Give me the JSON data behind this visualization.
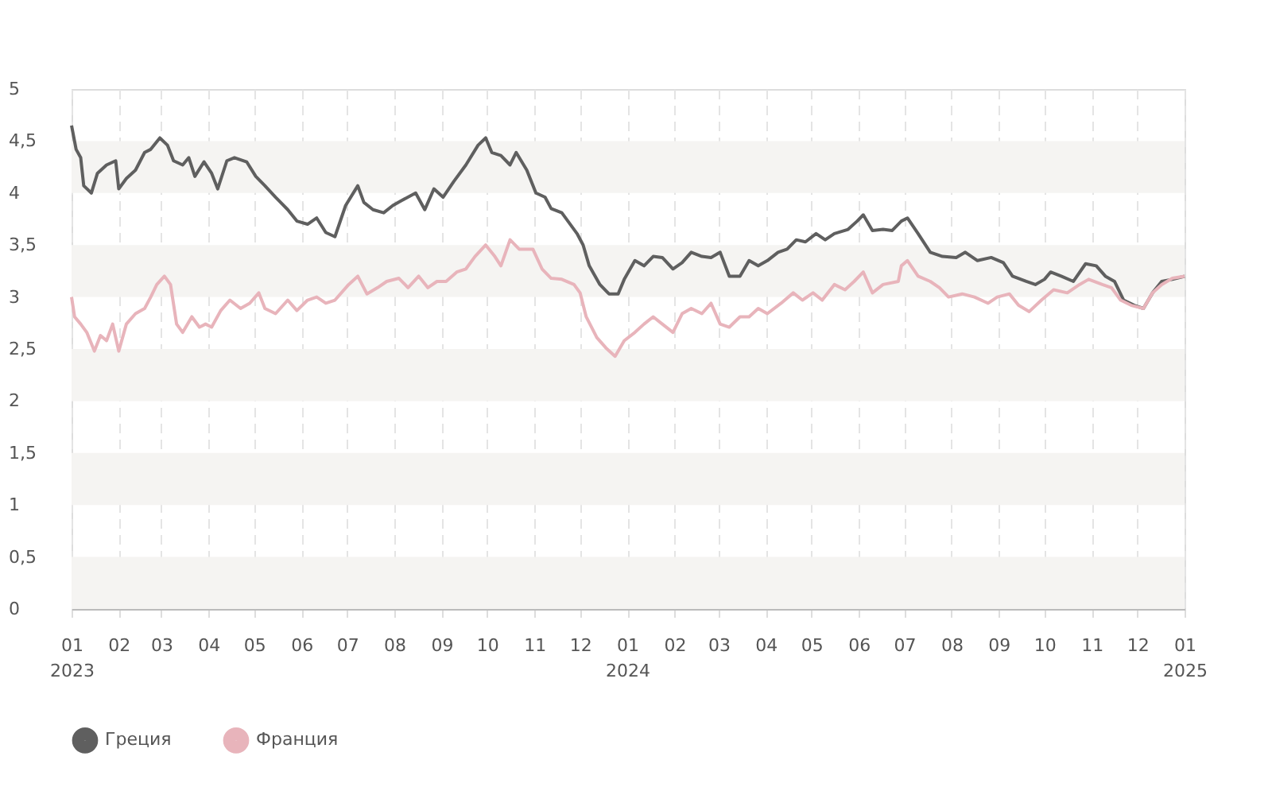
{
  "chart_data": {
    "type": "line",
    "xlim": [
      "2023-01-01",
      "2025-01-01"
    ],
    "xticks": [
      {
        "value": "2023-01-01",
        "label": "01\n2023"
      },
      {
        "value": "2023-02-01",
        "label": "02"
      },
      {
        "value": "2023-03-01",
        "label": "03"
      },
      {
        "value": "2023-04-01",
        "label": "04"
      },
      {
        "value": "2023-05-01",
        "label": "05"
      },
      {
        "value": "2023-06-01",
        "label": "06"
      },
      {
        "value": "2023-07-01",
        "label": "07"
      },
      {
        "value": "2023-08-01",
        "label": "08"
      },
      {
        "value": "2023-09-01",
        "label": "09"
      },
      {
        "value": "2023-10-01",
        "label": "10"
      },
      {
        "value": "2023-11-01",
        "label": "11"
      },
      {
        "value": "2023-12-01",
        "label": "12"
      },
      {
        "value": "2024-01-01",
        "label": "01\n2024"
      },
      {
        "value": "2024-02-01",
        "label": "02"
      },
      {
        "value": "2024-03-01",
        "label": "03"
      },
      {
        "value": "2024-04-01",
        "label": "04"
      },
      {
        "value": "2024-05-01",
        "label": "05"
      },
      {
        "value": "2024-06-01",
        "label": "06"
      },
      {
        "value": "2024-07-01",
        "label": "07"
      },
      {
        "value": "2024-08-01",
        "label": "08"
      },
      {
        "value": "2024-09-01",
        "label": "09"
      },
      {
        "value": "2024-10-01",
        "label": "10"
      },
      {
        "value": "2024-11-01",
        "label": "11"
      },
      {
        "value": "2024-12-01",
        "label": "12"
      },
      {
        "value": "2025-01-01",
        "label": "01\n2025"
      }
    ],
    "ylim": [
      0,
      5
    ],
    "yticks": [
      0,
      {
        "value": 0.5,
        "label": "0,5"
      },
      1,
      {
        "value": 1.5,
        "label": "1,5"
      },
      2,
      {
        "value": 2.5,
        "label": "2,5"
      },
      3,
      {
        "value": 3.5,
        "label": "3,5"
      },
      4,
      {
        "value": 4.5,
        "label": "4,5"
      },
      5
    ],
    "grid": "x",
    "legend": "bottom",
    "marker": "none",
    "line_style": "solid",
    "bands": [
      {
        "axis": "y",
        "from": 0,
        "to": 0.5,
        "color": "#f5f4f2"
      },
      {
        "axis": "y",
        "from": 1,
        "to": 1.5,
        "color": "#f5f4f2"
      },
      {
        "axis": "y",
        "from": 2,
        "to": 2.5,
        "color": "#f5f4f2"
      },
      {
        "axis": "y",
        "from": 3,
        "to": 3.5,
        "color": "#f5f4f2"
      },
      {
        "axis": "y",
        "from": 4,
        "to": 4.5,
        "color": "#f5f4f2"
      }
    ],
    "series": [
      {
        "name": "Греция",
        "color": "#5f5f5f",
        "x": [
          "2023-01-01",
          "2023-01-04",
          "2023-01-07",
          "2023-01-09",
          "2023-01-14",
          "2023-01-18",
          "2023-01-24",
          "2023-01-30",
          "2023-02-01",
          "2023-02-06",
          "2023-02-12",
          "2023-02-18",
          "2023-02-22",
          "2023-02-28",
          "2023-03-05",
          "2023-03-09",
          "2023-03-15",
          "2023-03-19",
          "2023-03-23",
          "2023-03-29",
          "2023-04-03",
          "2023-04-07",
          "2023-04-13",
          "2023-04-18",
          "2023-04-26",
          "2023-05-02",
          "2023-05-08",
          "2023-05-15",
          "2023-05-23",
          "2023-05-29",
          "2023-06-05",
          "2023-06-11",
          "2023-06-17",
          "2023-06-23",
          "2023-06-30",
          "2023-07-08",
          "2023-07-12",
          "2023-07-18",
          "2023-07-25",
          "2023-07-31",
          "2023-08-06",
          "2023-08-15",
          "2023-08-21",
          "2023-08-27",
          "2023-09-02",
          "2023-09-09",
          "2023-09-17",
          "2023-09-25",
          "2023-09-30",
          "2023-10-04",
          "2023-10-10",
          "2023-10-16",
          "2023-10-20",
          "2023-10-27",
          "2023-11-02",
          "2023-11-08",
          "2023-11-12",
          "2023-11-19",
          "2023-11-23",
          "2023-11-29",
          "2023-12-03",
          "2023-12-07",
          "2023-12-14",
          "2023-12-20",
          "2023-12-26",
          "2023-12-30",
          "2024-01-06",
          "2024-01-12",
          "2024-01-18",
          "2024-01-24",
          "2024-01-31",
          "2024-02-06",
          "2024-02-12",
          "2024-02-19",
          "2024-02-25",
          "2024-03-02",
          "2024-03-08",
          "2024-03-15",
          "2024-03-21",
          "2024-03-27",
          "2024-04-02",
          "2024-04-09",
          "2024-04-15",
          "2024-04-21",
          "2024-04-27",
          "2024-05-04",
          "2024-05-10",
          "2024-05-16",
          "2024-05-25",
          "2024-05-31",
          "2024-06-04",
          "2024-06-10",
          "2024-06-17",
          "2024-06-23",
          "2024-06-29",
          "2024-07-03",
          "2024-07-10",
          "2024-07-18",
          "2024-07-26",
          "2024-08-04",
          "2024-08-10",
          "2024-08-18",
          "2024-08-27",
          "2024-09-04",
          "2024-09-10",
          "2024-09-19",
          "2024-09-25",
          "2024-10-01",
          "2024-10-05",
          "2024-10-12",
          "2024-10-20",
          "2024-10-28",
          "2024-11-04",
          "2024-11-10",
          "2024-11-16",
          "2024-11-22",
          "2024-11-29",
          "2024-12-05",
          "2024-12-11",
          "2024-12-17",
          "2024-12-24",
          "2025-01-01"
        ],
        "values": [
          4.65,
          4.42,
          4.34,
          4.07,
          4.0,
          4.19,
          4.27,
          4.31,
          4.04,
          4.14,
          4.22,
          4.39,
          4.42,
          4.53,
          4.46,
          4.31,
          4.27,
          4.34,
          4.16,
          4.3,
          4.19,
          4.04,
          4.31,
          4.34,
          4.3,
          4.16,
          4.07,
          3.96,
          3.84,
          3.73,
          3.7,
          3.76,
          3.62,
          3.58,
          3.88,
          4.07,
          3.91,
          3.84,
          3.81,
          3.88,
          3.93,
          4.0,
          3.84,
          4.04,
          3.96,
          4.11,
          4.27,
          4.46,
          4.53,
          4.39,
          4.36,
          4.27,
          4.39,
          4.22,
          4.0,
          3.96,
          3.85,
          3.81,
          3.73,
          3.61,
          3.5,
          3.3,
          3.12,
          3.03,
          3.03,
          3.17,
          3.35,
          3.3,
          3.39,
          3.38,
          3.27,
          3.33,
          3.43,
          3.39,
          3.38,
          3.43,
          3.2,
          3.2,
          3.35,
          3.3,
          3.35,
          3.43,
          3.46,
          3.55,
          3.53,
          3.61,
          3.55,
          3.61,
          3.65,
          3.73,
          3.79,
          3.64,
          3.65,
          3.64,
          3.73,
          3.76,
          3.61,
          3.43,
          3.39,
          3.38,
          3.43,
          3.35,
          3.38,
          3.33,
          3.2,
          3.15,
          3.12,
          3.17,
          3.24,
          3.2,
          3.15,
          3.32,
          3.3,
          3.2,
          3.15,
          2.97,
          2.92,
          2.89,
          3.04,
          3.15,
          3.17,
          3.2
        ]
      },
      {
        "name": "Франция",
        "color": "#e8b4bb",
        "x": [
          "2023-01-01",
          "2023-01-03",
          "2023-01-07",
          "2023-01-11",
          "2023-01-16",
          "2023-01-20",
          "2023-01-24",
          "2023-01-28",
          "2023-02-01",
          "2023-02-06",
          "2023-02-12",
          "2023-02-18",
          "2023-02-22",
          "2023-02-26",
          "2023-03-03",
          "2023-03-07",
          "2023-03-11",
          "2023-03-15",
          "2023-03-21",
          "2023-03-26",
          "2023-03-30",
          "2023-04-03",
          "2023-04-09",
          "2023-04-15",
          "2023-04-22",
          "2023-04-28",
          "2023-05-04",
          "2023-05-08",
          "2023-05-15",
          "2023-05-23",
          "2023-05-29",
          "2023-06-05",
          "2023-06-11",
          "2023-06-17",
          "2023-06-23",
          "2023-07-02",
          "2023-07-08",
          "2023-07-14",
          "2023-07-21",
          "2023-07-27",
          "2023-08-04",
          "2023-08-10",
          "2023-08-17",
          "2023-08-23",
          "2023-08-29",
          "2023-09-04",
          "2023-09-11",
          "2023-09-17",
          "2023-09-23",
          "2023-09-30",
          "2023-10-06",
          "2023-10-10",
          "2023-10-16",
          "2023-10-22",
          "2023-10-31",
          "2023-11-06",
          "2023-11-12",
          "2023-11-19",
          "2023-11-27",
          "2023-12-01",
          "2023-12-05",
          "2023-12-12",
          "2023-12-18",
          "2023-12-24",
          "2023-12-30",
          "2024-01-06",
          "2024-01-12",
          "2024-01-18",
          "2024-01-24",
          "2024-01-31",
          "2024-02-06",
          "2024-02-12",
          "2024-02-19",
          "2024-02-25",
          "2024-03-02",
          "2024-03-08",
          "2024-03-15",
          "2024-03-21",
          "2024-03-27",
          "2024-04-02",
          "2024-04-11",
          "2024-04-19",
          "2024-04-25",
          "2024-05-02",
          "2024-05-08",
          "2024-05-16",
          "2024-05-23",
          "2024-05-29",
          "2024-06-04",
          "2024-06-10",
          "2024-06-17",
          "2024-06-27",
          "2024-06-29",
          "2024-07-03",
          "2024-07-10",
          "2024-07-18",
          "2024-07-24",
          "2024-07-30",
          "2024-08-08",
          "2024-08-16",
          "2024-08-25",
          "2024-08-31",
          "2024-09-08",
          "2024-09-14",
          "2024-09-21",
          "2024-09-29",
          "2024-10-07",
          "2024-10-16",
          "2024-10-24",
          "2024-10-30",
          "2024-11-08",
          "2024-11-14",
          "2024-11-20",
          "2024-11-27",
          "2024-12-05",
          "2024-12-11",
          "2024-12-17",
          "2024-12-24",
          "2025-01-01"
        ],
        "values": [
          3.0,
          2.81,
          2.74,
          2.66,
          2.48,
          2.63,
          2.58,
          2.74,
          2.48,
          2.74,
          2.84,
          2.89,
          3.0,
          3.12,
          3.2,
          3.12,
          2.74,
          2.66,
          2.81,
          2.71,
          2.74,
          2.71,
          2.87,
          2.97,
          2.89,
          2.94,
          3.04,
          2.89,
          2.84,
          2.97,
          2.87,
          2.97,
          3.0,
          2.94,
          2.97,
          3.12,
          3.2,
          3.03,
          3.09,
          3.15,
          3.18,
          3.09,
          3.2,
          3.09,
          3.15,
          3.15,
          3.24,
          3.27,
          3.39,
          3.5,
          3.39,
          3.3,
          3.55,
          3.46,
          3.46,
          3.27,
          3.18,
          3.17,
          3.12,
          3.04,
          2.81,
          2.61,
          2.51,
          2.43,
          2.58,
          2.66,
          2.74,
          2.81,
          2.74,
          2.66,
          2.84,
          2.89,
          2.84,
          2.94,
          2.74,
          2.71,
          2.81,
          2.81,
          2.89,
          2.84,
          2.94,
          3.04,
          2.97,
          3.04,
          2.97,
          3.12,
          3.07,
          3.15,
          3.24,
          3.04,
          3.12,
          3.15,
          3.3,
          3.35,
          3.2,
          3.15,
          3.09,
          3.0,
          3.03,
          3.0,
          2.94,
          3.0,
          3.03,
          2.92,
          2.86,
          2.97,
          3.07,
          3.04,
          3.12,
          3.17,
          3.12,
          3.09,
          2.97,
          2.92,
          2.89,
          3.04,
          3.12,
          3.18,
          3.2
        ]
      }
    ]
  }
}
